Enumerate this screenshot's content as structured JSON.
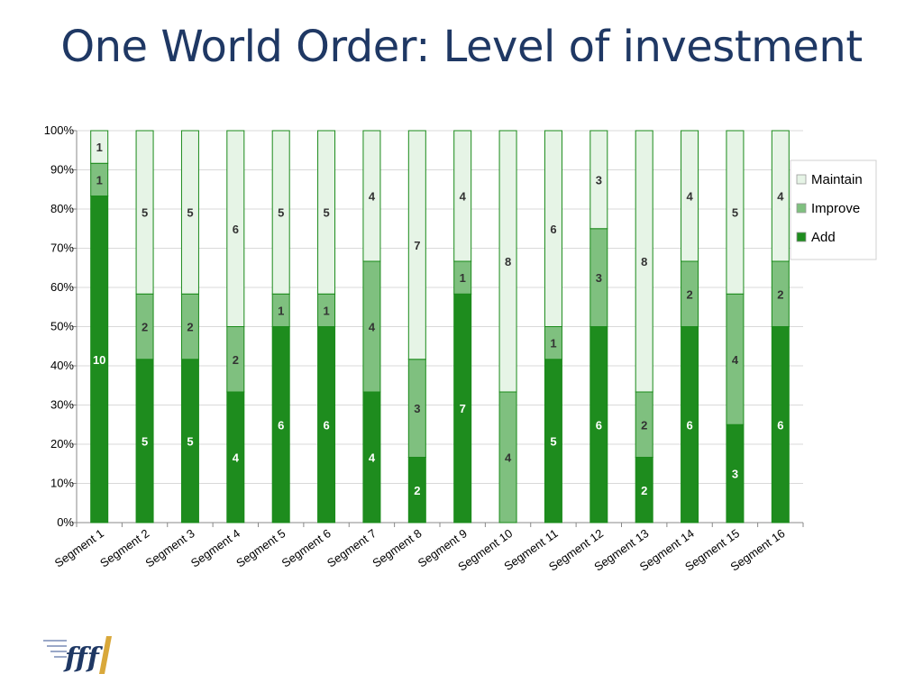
{
  "title": "One World Order: Level of investment",
  "logo": {
    "text": "fff"
  },
  "chart_data": {
    "type": "bar",
    "stacked": "percent",
    "categories": [
      "Segment 1",
      "Segment 2",
      "Segment 3",
      "Segment 4",
      "Segment 5",
      "Segment 6",
      "Segment 7",
      "Segment 8",
      "Segment 9",
      "Segment 10",
      "Segment 11",
      "Segment 12",
      "Segment 13",
      "Segment 14",
      "Segment 15",
      "Segment 16"
    ],
    "series": [
      {
        "name": "Add",
        "color": "#1e8c1e",
        "label_color": "#ffffff",
        "values": [
          10,
          5,
          5,
          4,
          6,
          6,
          4,
          2,
          7,
          0,
          5,
          6,
          2,
          6,
          3,
          6
        ]
      },
      {
        "name": "Improve",
        "color": "#7fc07f",
        "label_color": "#333333",
        "values": [
          1,
          2,
          2,
          2,
          1,
          1,
          4,
          3,
          1,
          4,
          1,
          3,
          2,
          2,
          4,
          2
        ]
      },
      {
        "name": "Maintain",
        "color": "#e6f4e6",
        "label_color": "#333333",
        "values": [
          1,
          5,
          5,
          6,
          5,
          5,
          4,
          7,
          4,
          8,
          6,
          3,
          8,
          4,
          5,
          4
        ]
      }
    ],
    "y_ticks": [
      "0%",
      "10%",
      "20%",
      "30%",
      "40%",
      "50%",
      "60%",
      "70%",
      "80%",
      "90%",
      "100%"
    ],
    "ylim": [
      0,
      100
    ],
    "grid": true,
    "legend": {
      "position": "right",
      "order": [
        "Maintain",
        "Improve",
        "Add"
      ]
    },
    "border_color": "#1a8a1a"
  }
}
